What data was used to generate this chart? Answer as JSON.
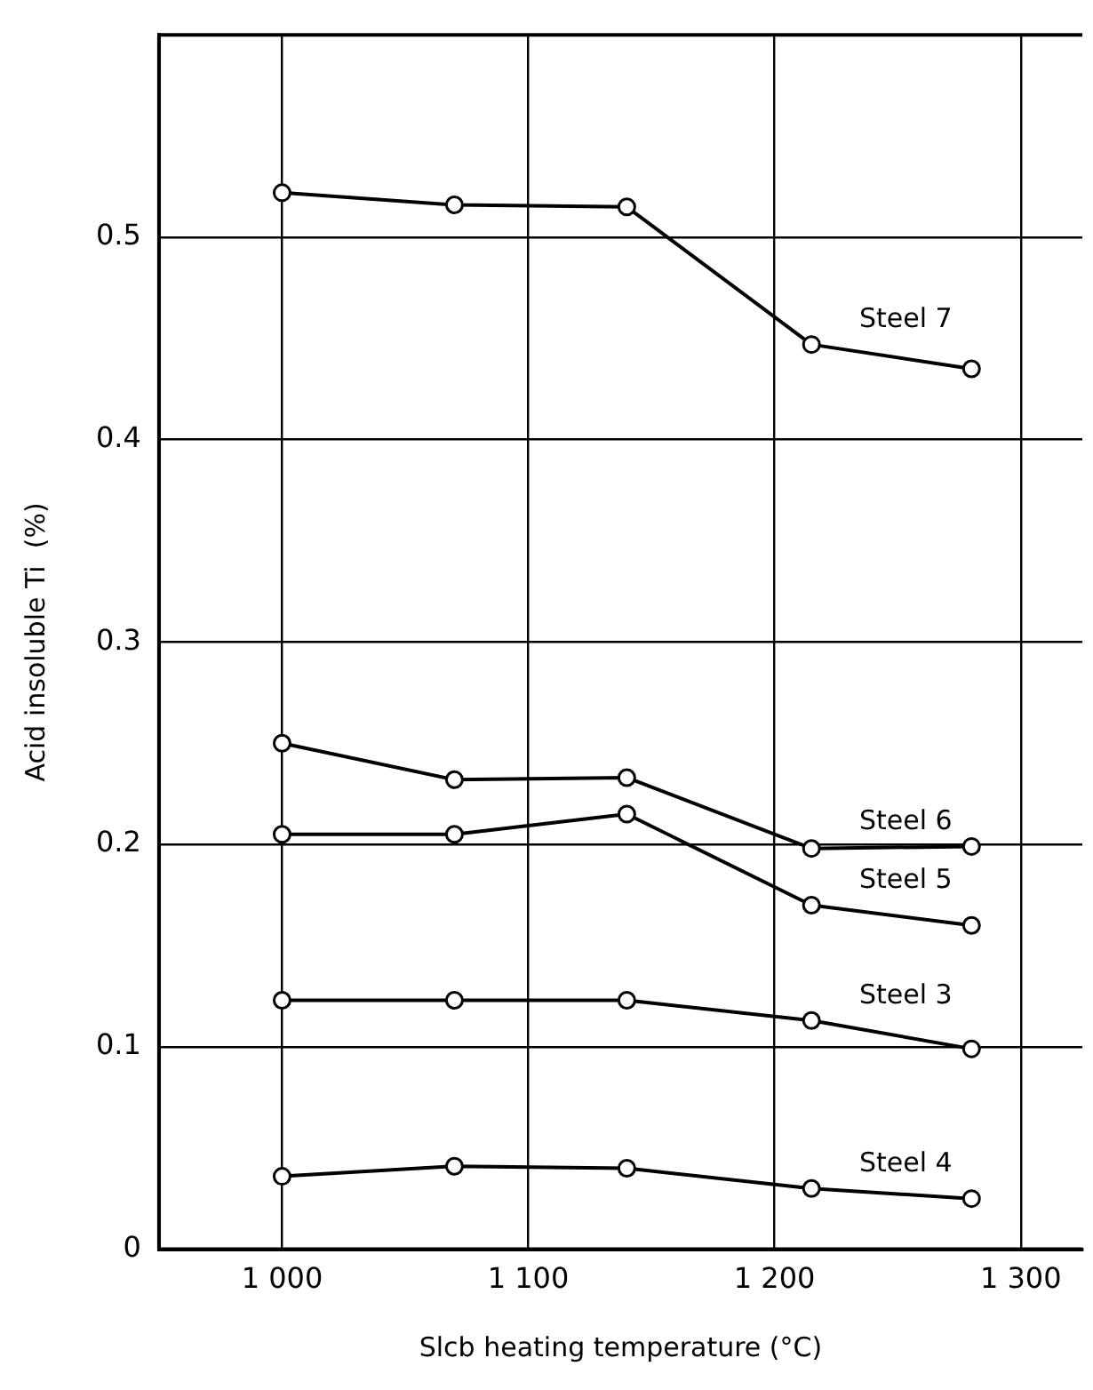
{
  "chart_data": {
    "type": "line",
    "xlabel": "Slcb heating temperature (°C)",
    "ylabel": "Acid insoluble Ti  (%)",
    "xlim": [
      950,
      1325
    ],
    "xticks": [
      {
        "value": 1000,
        "label": "1 000"
      },
      {
        "value": 1100,
        "label": "1 100"
      },
      {
        "value": 1200,
        "label": "1 200"
      },
      {
        "value": 1300,
        "label": "1 300"
      }
    ],
    "ylim": [
      0,
      0.6
    ],
    "yticks": [
      0,
      0.1,
      0.2,
      0.3,
      0.4,
      0.5
    ],
    "x": [
      1000,
      1070,
      1140,
      1215,
      1280
    ],
    "series": [
      {
        "name": "Steel 7",
        "color": "#000000",
        "values": [
          0.522,
          0.516,
          0.515,
          0.447,
          0.435
        ]
      },
      {
        "name": "Steel 6",
        "color": "#000000",
        "values": [
          0.25,
          0.232,
          0.233,
          0.198,
          0.199
        ]
      },
      {
        "name": "Steel 5",
        "color": "#000000",
        "values": [
          0.205,
          0.205,
          0.215,
          0.17,
          0.16
        ]
      },
      {
        "name": "Steel 3",
        "color": "#000000",
        "values": [
          0.123,
          0.123,
          0.123,
          0.113,
          0.099
        ]
      },
      {
        "name": "Steel 4",
        "color": "#000000",
        "values": [
          0.036,
          0.041,
          0.04,
          0.03,
          0.025
        ]
      }
    ],
    "grid": true,
    "legend": false,
    "marker": "circle",
    "line_style": "solid"
  }
}
